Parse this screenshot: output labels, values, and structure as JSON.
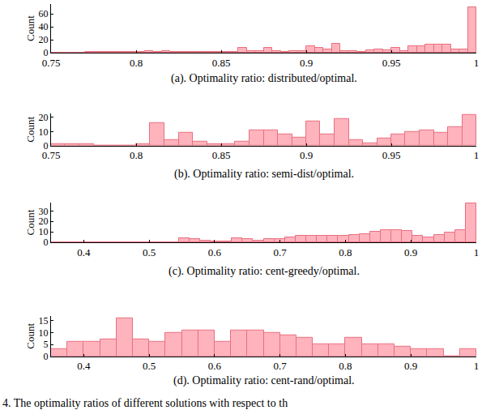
{
  "chart_data": [
    {
      "type": "histogram",
      "x_label": "(a). Optimality ratio: distributed/optimal.",
      "y_label": "Count",
      "color": "#ffb3bd",
      "bins": [
        0.75,
        0.755,
        0.76,
        0.765,
        0.77,
        0.775,
        0.78,
        0.785,
        0.79,
        0.795,
        0.8,
        0.805,
        0.81,
        0.815,
        0.82,
        0.825,
        0.83,
        0.835,
        0.84,
        0.845,
        0.85,
        0.855,
        0.86,
        0.865,
        0.87,
        0.875,
        0.88,
        0.885,
        0.89,
        0.895,
        0.9,
        0.905,
        0.91,
        0.915,
        0.92,
        0.925,
        0.93,
        0.935,
        0.94,
        0.945,
        0.95,
        0.955,
        0.96,
        0.965,
        0.97,
        0.975,
        0.98,
        0.985,
        0.99,
        0.995,
        1.0
      ],
      "counts": [
        0,
        0,
        0,
        0,
        1,
        1,
        1,
        1,
        2,
        1,
        2,
        3,
        2,
        3,
        1,
        1,
        1,
        1,
        1,
        1,
        1,
        2,
        8,
        3,
        3,
        8,
        3,
        2,
        3,
        3,
        10,
        8,
        5,
        14,
        3,
        3,
        2,
        4,
        5,
        4,
        8,
        3,
        10,
        10,
        13,
        13,
        13,
        5,
        5,
        70
      ],
      "xlim": [
        0.75,
        1
      ],
      "xticks": [
        0.75,
        0.8,
        0.85,
        0.9,
        0.95,
        1
      ],
      "ylim": [
        0,
        75
      ],
      "yticks": [
        0,
        20,
        40,
        60
      ]
    },
    {
      "type": "histogram",
      "x_label": "(b). Optimality ratio: semi-dist/optimal.",
      "y_label": "Count",
      "color": "#ffb3bd",
      "bins": [
        0.75,
        0.7583,
        0.7667,
        0.775,
        0.7833,
        0.7917,
        0.8,
        0.8083,
        0.8167,
        0.825,
        0.8333,
        0.8417,
        0.85,
        0.8583,
        0.8667,
        0.875,
        0.8833,
        0.8917,
        0.9,
        0.9083,
        0.9167,
        0.925,
        0.9333,
        0.9417,
        0.95,
        0.9583,
        0.9667,
        0.975,
        0.9833,
        0.9917,
        1.0
      ],
      "counts": [
        1,
        1,
        1,
        0,
        0,
        0,
        1,
        16,
        4,
        9,
        3,
        1,
        1,
        3,
        11,
        11,
        8,
        6,
        17,
        8,
        19,
        4,
        2,
        5,
        8,
        10,
        11,
        9,
        13,
        22
      ],
      "xlim": [
        0.75,
        1
      ],
      "xticks": [
        0.75,
        0.8,
        0.85,
        0.9,
        0.95,
        1
      ],
      "ylim": [
        0,
        23
      ],
      "yticks": [
        0,
        10,
        20
      ]
    },
    {
      "type": "histogram",
      "x_label": "(c). Optimality ratio: cent-greedy/optimal.",
      "y_label": "Count",
      "color": "#ffb3bd",
      "bins": [
        0.35,
        0.36625,
        0.3825,
        0.39875,
        0.415,
        0.43125,
        0.4475,
        0.46375,
        0.48,
        0.49625,
        0.5125,
        0.52875,
        0.545,
        0.56125,
        0.5775,
        0.59375,
        0.61,
        0.62625,
        0.6425,
        0.65875,
        0.675,
        0.69125,
        0.7075,
        0.72375,
        0.74,
        0.75625,
        0.7725,
        0.78875,
        0.805,
        0.82125,
        0.8375,
        0.85375,
        0.87,
        0.88625,
        0.9025,
        0.91875,
        0.935,
        0.95125,
        0.9675,
        0.98375,
        1.0
      ],
      "counts": [
        0,
        0,
        0,
        0,
        0,
        0,
        0,
        0,
        0,
        0,
        0,
        0,
        4,
        3,
        2,
        1,
        1,
        4,
        3,
        2,
        3,
        3,
        5,
        6,
        6,
        6,
        6,
        6,
        7,
        8,
        10,
        12,
        12,
        11,
        6,
        5,
        7,
        9,
        12,
        37
      ],
      "xlim": [
        0.35,
        1
      ],
      "xticks": [
        0.4,
        0.5,
        0.6,
        0.7,
        0.8,
        0.9,
        1
      ],
      "ylim": [
        0,
        38
      ],
      "yticks": [
        0,
        10,
        20,
        30
      ]
    },
    {
      "type": "histogram",
      "x_label": "(d). Optimality ratio: cent-rand/optimal.",
      "y_label": "Count",
      "color": "#ffb3bd",
      "bins": [
        0.35,
        0.375,
        0.4,
        0.425,
        0.45,
        0.475,
        0.5,
        0.525,
        0.55,
        0.575,
        0.6,
        0.625,
        0.65,
        0.675,
        0.7,
        0.725,
        0.75,
        0.775,
        0.8,
        0.825,
        0.85,
        0.875,
        0.9,
        0.925,
        0.95,
        0.975,
        1.0
      ],
      "counts": [
        3,
        6,
        6,
        7,
        16,
        7,
        6,
        10,
        11,
        11,
        6,
        11,
        11,
        10,
        9,
        8,
        5,
        5,
        8,
        5,
        5,
        4,
        3,
        3,
        0,
        3
      ],
      "xlim": [
        0.35,
        1
      ],
      "xticks": [
        0.4,
        0.5,
        0.6,
        0.7,
        0.8,
        0.9,
        1
      ],
      "ylim": [
        0,
        17
      ],
      "yticks": [
        0,
        5,
        10,
        15
      ]
    }
  ],
  "caption": "4. The optimality ratios of different solutions with respect to th"
}
